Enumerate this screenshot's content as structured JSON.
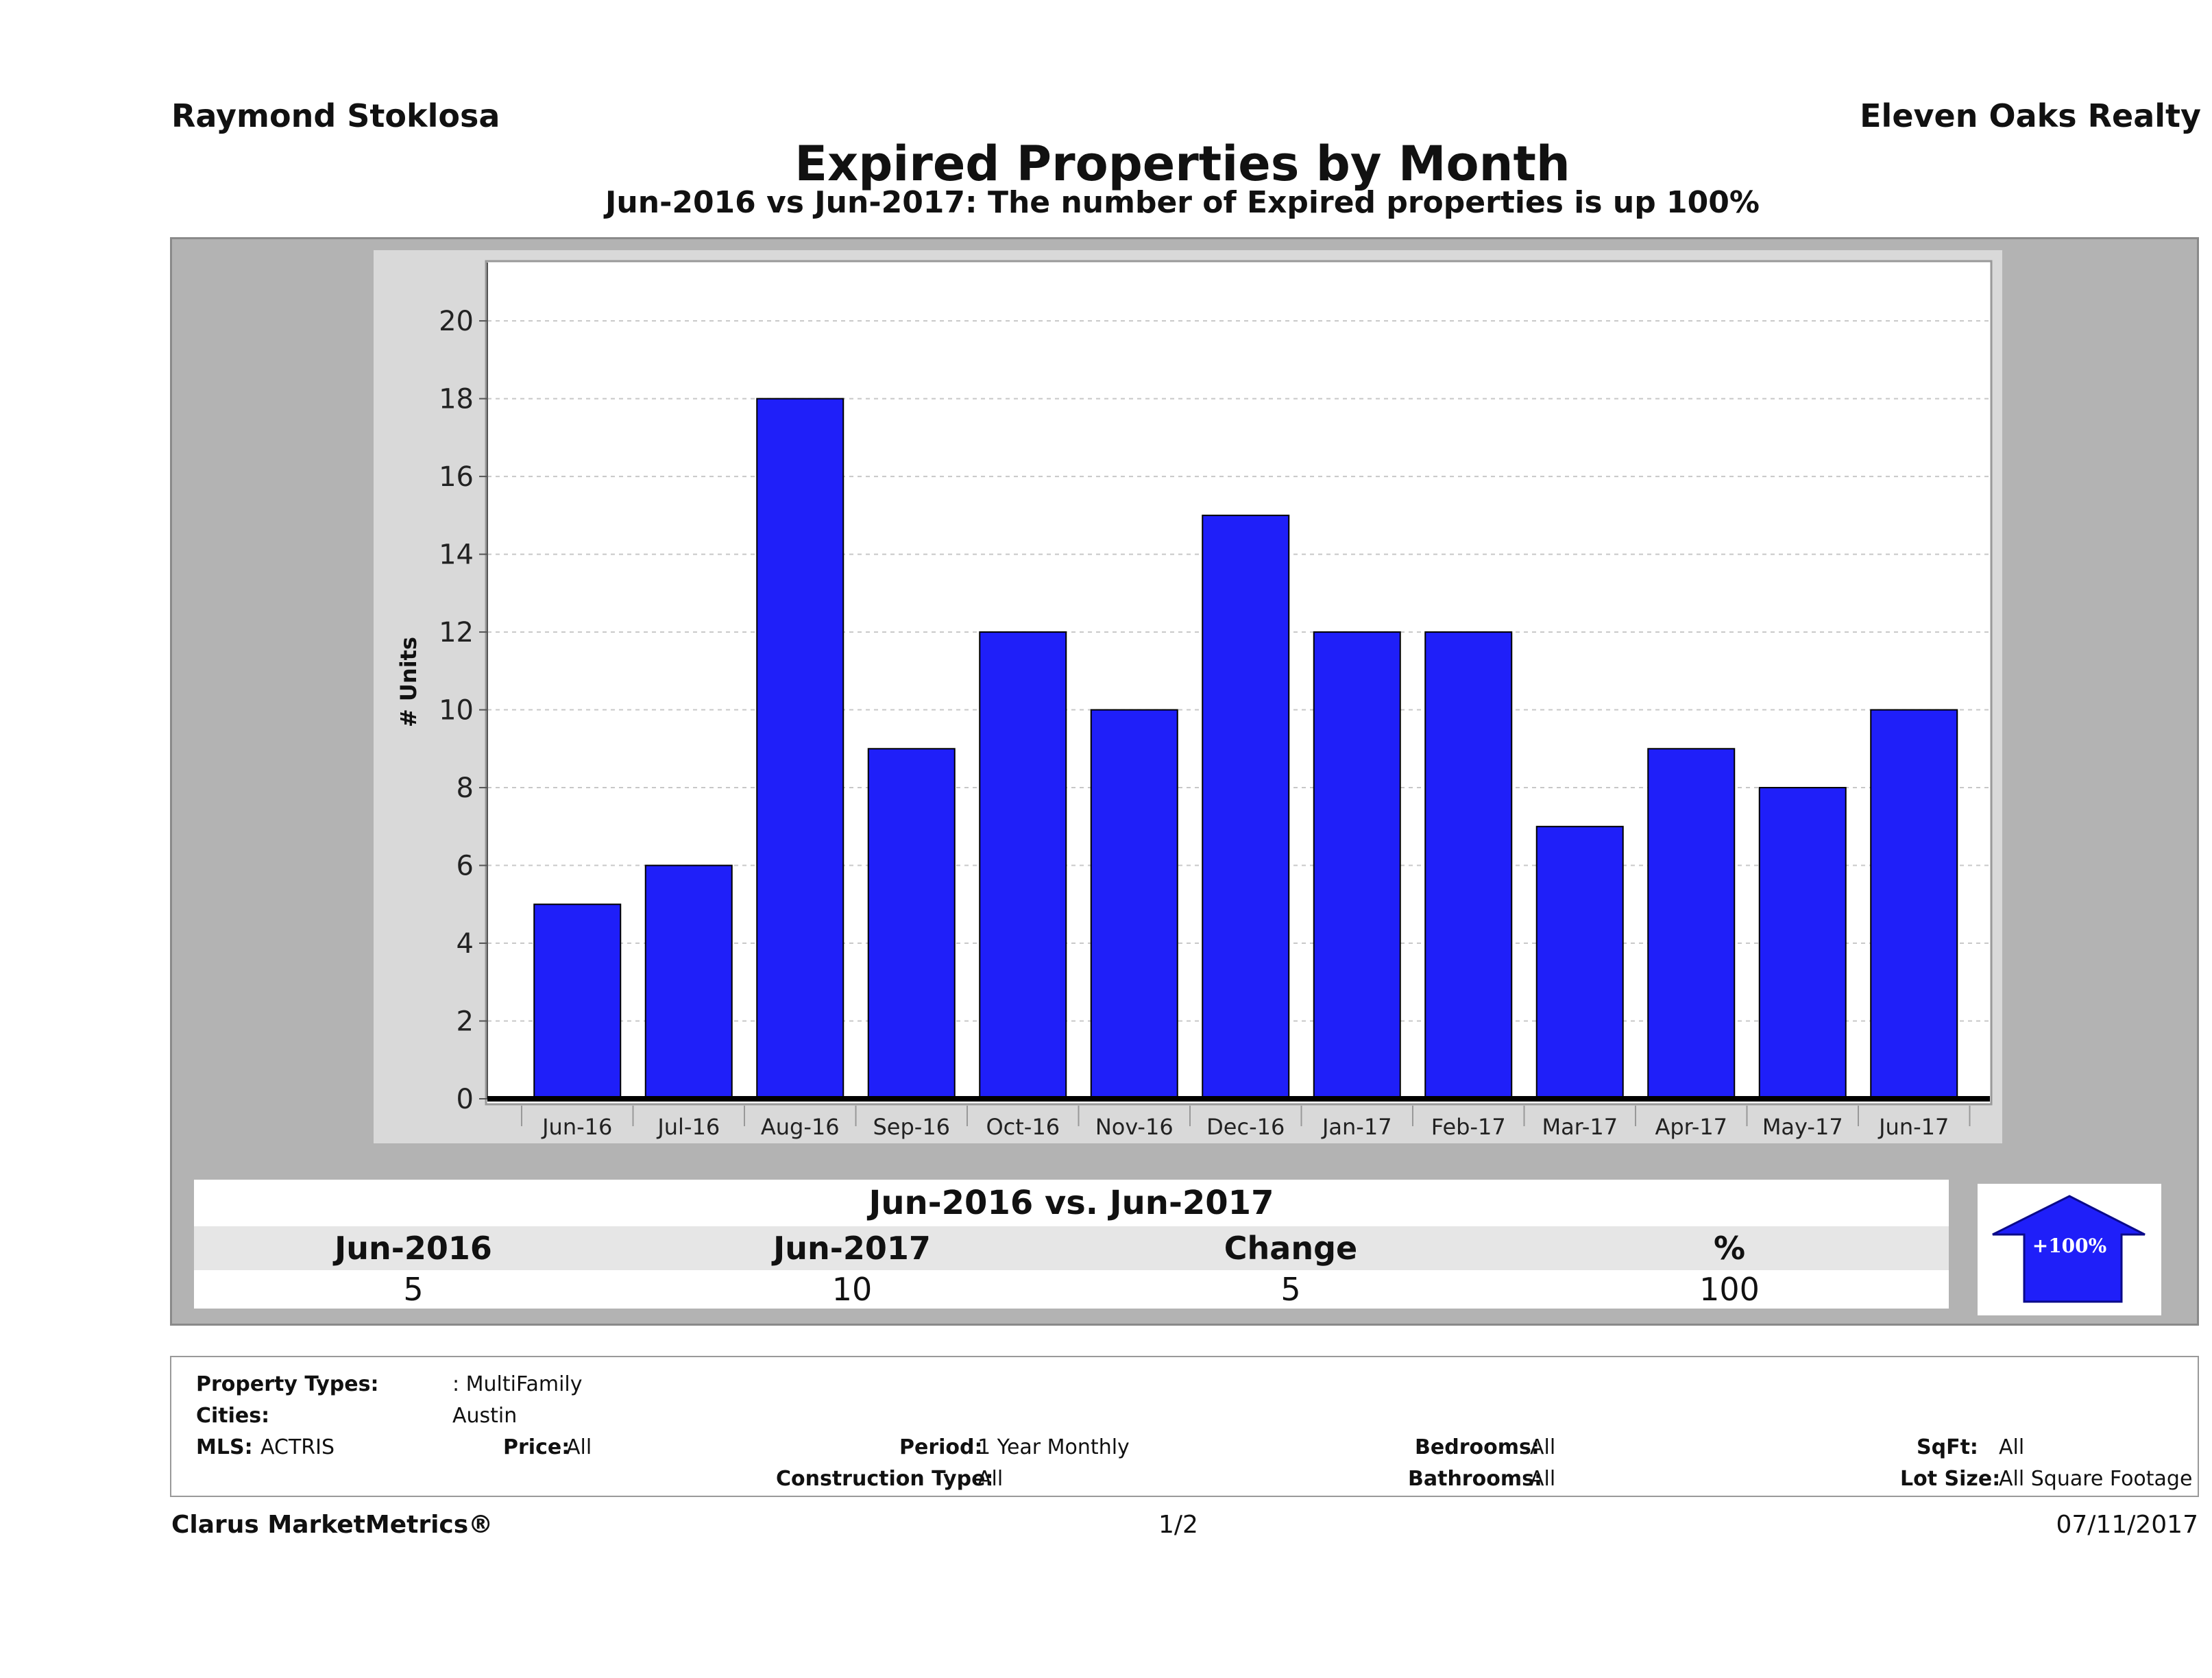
{
  "header": {
    "agent_name": "Raymond Stoklosa",
    "brokerage": "Eleven Oaks Realty",
    "title": "Expired Properties by Month",
    "subtitle": "Jun-2016 vs Jun-2017: The number of Expired  properties is up 100%"
  },
  "chart_data": {
    "type": "bar",
    "categories": [
      "Jun-16",
      "Jul-16",
      "Aug-16",
      "Sep-16",
      "Oct-16",
      "Nov-16",
      "Dec-16",
      "Jan-17",
      "Feb-17",
      "Mar-17",
      "Apr-17",
      "May-17",
      "Jun-17"
    ],
    "values": [
      5,
      6,
      18,
      9,
      12,
      10,
      15,
      12,
      12,
      7,
      9,
      8,
      10
    ],
    "title": "Expired Properties by Month",
    "xlabel": "",
    "ylabel": "# Units",
    "ylim": [
      0,
      21.5
    ],
    "yticks": [
      0,
      2,
      4,
      6,
      8,
      10,
      12,
      14,
      16,
      18,
      20
    ],
    "grid": true,
    "bar_color": "#1f1ff9"
  },
  "comparison": {
    "title": "Jun-2016 vs. Jun-2017",
    "headers": [
      "Jun-2016",
      "Jun-2017",
      "Change",
      "%"
    ],
    "values": [
      "5",
      "10",
      "5",
      "100"
    ],
    "arrow_label": "+100%",
    "arrow_direction": "up",
    "arrow_color": "#1f1ff9"
  },
  "filters": {
    "property_types_label": "Property Types:",
    "property_types_value": ": MultiFamily",
    "cities_label": "Cities:",
    "cities_value": "Austin",
    "mls_label": "MLS:",
    "mls_value": "ACTRIS",
    "price_label": "Price:",
    "price_value": "All",
    "period_label": "Period:",
    "period_value": "1 Year Monthly",
    "construction_label": "Construction Type:",
    "construction_value": "All",
    "bedrooms_label": "Bedrooms:",
    "bedrooms_value": "All",
    "bathrooms_label": "Bathrooms:",
    "bathrooms_value": "All",
    "sqft_label": "SqFt:",
    "sqft_value": "All",
    "lot_size_label": "Lot Size:",
    "lot_size_value": "All Square Footage"
  },
  "footer": {
    "brand": "Clarus MarketMetrics®",
    "page": "1/2",
    "date": "07/11/2017"
  }
}
